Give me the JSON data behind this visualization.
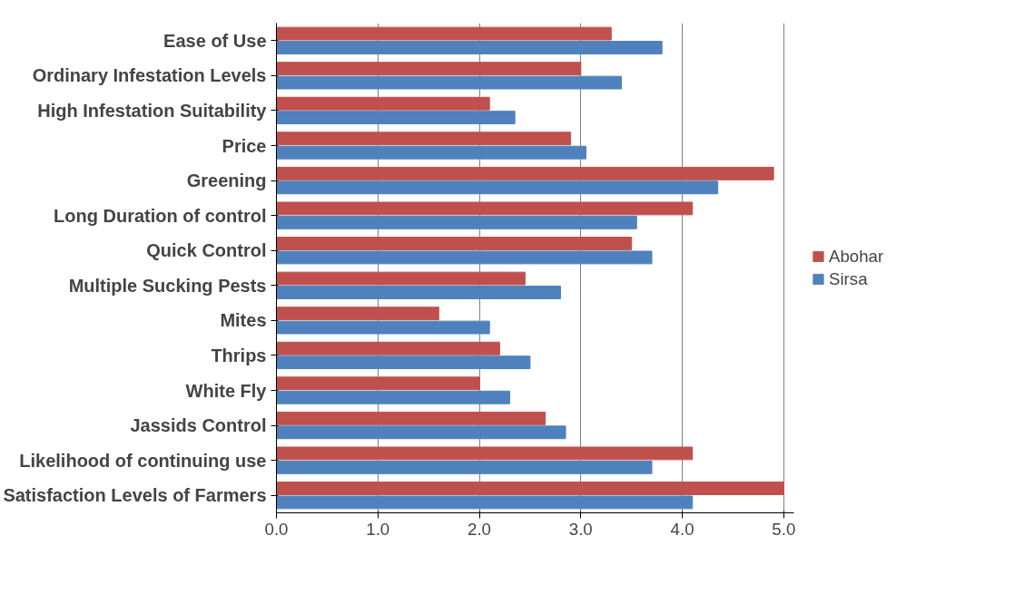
{
  "chart_data": {
    "type": "bar",
    "orientation": "horizontal",
    "categories": [
      "Ease of Use",
      "Ordinary Infestation Levels",
      "High Infestation Suitability",
      "Price",
      "Greening",
      "Long Duration of control",
      "Quick Control",
      "Multiple Sucking Pests",
      "Mites",
      "Thrips",
      "White Fly",
      "Jassids Control",
      "Likelihood of continuing use",
      "Satisfaction Levels of Farmers"
    ],
    "series": [
      {
        "name": "Abohar",
        "color": "#c0504d",
        "values": [
          3.3,
          3.0,
          2.1,
          2.9,
          4.9,
          4.1,
          3.5,
          2.45,
          1.6,
          2.2,
          2.0,
          2.65,
          4.1,
          5.0
        ]
      },
      {
        "name": "Sirsa",
        "color": "#4f81bd",
        "values": [
          3.8,
          3.4,
          2.35,
          3.05,
          4.35,
          3.55,
          3.7,
          2.8,
          2.1,
          2.5,
          2.3,
          2.85,
          3.7,
          4.1
        ]
      }
    ],
    "xlim": [
      0,
      5.1
    ],
    "xticks": [
      {
        "value": 0,
        "label": "0.0"
      },
      {
        "value": 1,
        "label": "1.0"
      },
      {
        "value": 2,
        "label": "2.0"
      },
      {
        "value": 3,
        "label": "3.0"
      },
      {
        "value": 4,
        "label": "4.0"
      },
      {
        "value": 5,
        "label": "5.0"
      }
    ],
    "grid": "x",
    "legend": "right"
  }
}
